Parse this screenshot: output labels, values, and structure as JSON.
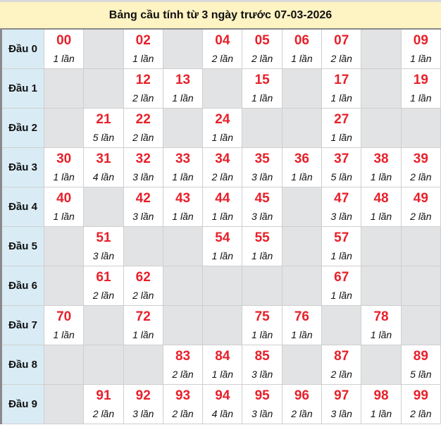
{
  "title": "Bảng cầu tính từ 3 ngày trước 07-03-2026",
  "rows": [
    {
      "label": "Đầu 0",
      "cells": [
        {
          "num": "00",
          "count": "1 lần"
        },
        null,
        {
          "num": "02",
          "count": "1 lần"
        },
        null,
        {
          "num": "04",
          "count": "2 lần"
        },
        {
          "num": "05",
          "count": "2 lần"
        },
        {
          "num": "06",
          "count": "1 lần"
        },
        {
          "num": "07",
          "count": "2 lần"
        },
        null,
        {
          "num": "09",
          "count": "1 lần"
        }
      ]
    },
    {
      "label": "Đầu 1",
      "cells": [
        null,
        null,
        {
          "num": "12",
          "count": "2 lần"
        },
        {
          "num": "13",
          "count": "1 lần"
        },
        null,
        {
          "num": "15",
          "count": "1 lần"
        },
        null,
        {
          "num": "17",
          "count": "1 lần"
        },
        null,
        {
          "num": "19",
          "count": "1 lần"
        }
      ]
    },
    {
      "label": "Đầu 2",
      "cells": [
        null,
        {
          "num": "21",
          "count": "5 lần"
        },
        {
          "num": "22",
          "count": "2 lần"
        },
        null,
        {
          "num": "24",
          "count": "1 lần"
        },
        null,
        null,
        {
          "num": "27",
          "count": "1 lần"
        },
        null,
        null
      ]
    },
    {
      "label": "Đầu 3",
      "cells": [
        {
          "num": "30",
          "count": "1 lần"
        },
        {
          "num": "31",
          "count": "4 lần"
        },
        {
          "num": "32",
          "count": "3 lần"
        },
        {
          "num": "33",
          "count": "1 lần"
        },
        {
          "num": "34",
          "count": "2 lần"
        },
        {
          "num": "35",
          "count": "3 lần"
        },
        {
          "num": "36",
          "count": "1 lần"
        },
        {
          "num": "37",
          "count": "5 lần"
        },
        {
          "num": "38",
          "count": "1 lần"
        },
        {
          "num": "39",
          "count": "2 lần"
        }
      ]
    },
    {
      "label": "Đầu 4",
      "cells": [
        {
          "num": "40",
          "count": "1 lần"
        },
        null,
        {
          "num": "42",
          "count": "3 lần"
        },
        {
          "num": "43",
          "count": "1 lần"
        },
        {
          "num": "44",
          "count": "1 lần"
        },
        {
          "num": "45",
          "count": "3 lần"
        },
        null,
        {
          "num": "47",
          "count": "3 lần"
        },
        {
          "num": "48",
          "count": "1 lần"
        },
        {
          "num": "49",
          "count": "2 lần"
        }
      ]
    },
    {
      "label": "Đầu 5",
      "cells": [
        null,
        {
          "num": "51",
          "count": "3 lần"
        },
        null,
        null,
        {
          "num": "54",
          "count": "1 lần"
        },
        {
          "num": "55",
          "count": "1 lần"
        },
        null,
        {
          "num": "57",
          "count": "1 lần"
        },
        null,
        null
      ]
    },
    {
      "label": "Đầu 6",
      "cells": [
        null,
        {
          "num": "61",
          "count": "2 lần"
        },
        {
          "num": "62",
          "count": "2 lần"
        },
        null,
        null,
        null,
        null,
        {
          "num": "67",
          "count": "1 lần"
        },
        null,
        null
      ]
    },
    {
      "label": "Đầu 7",
      "cells": [
        {
          "num": "70",
          "count": "1 lần"
        },
        null,
        {
          "num": "72",
          "count": "1 lần"
        },
        null,
        null,
        {
          "num": "75",
          "count": "1 lần"
        },
        {
          "num": "76",
          "count": "1 lần"
        },
        null,
        {
          "num": "78",
          "count": "1 lần"
        },
        null
      ]
    },
    {
      "label": "Đầu 8",
      "cells": [
        null,
        null,
        null,
        {
          "num": "83",
          "count": "2 lần"
        },
        {
          "num": "84",
          "count": "1 lần"
        },
        {
          "num": "85",
          "count": "3 lần"
        },
        null,
        {
          "num": "87",
          "count": "2 lần"
        },
        null,
        {
          "num": "89",
          "count": "5 lần"
        }
      ]
    },
    {
      "label": "Đầu 9",
      "cells": [
        null,
        {
          "num": "91",
          "count": "2 lần"
        },
        {
          "num": "92",
          "count": "3 lần"
        },
        {
          "num": "93",
          "count": "2 lần"
        },
        {
          "num": "94",
          "count": "4 lần"
        },
        {
          "num": "95",
          "count": "3 lần"
        },
        {
          "num": "96",
          "count": "2 lần"
        },
        {
          "num": "97",
          "count": "3 lần"
        },
        {
          "num": "98",
          "count": "1 lần"
        },
        {
          "num": "99",
          "count": "2 lần"
        }
      ]
    }
  ],
  "colors": {
    "number": "#E8202A",
    "title_bg": "#FEF3C2",
    "head_bg": "#D9ECF6",
    "empty_bg": "#E2E3E5"
  }
}
